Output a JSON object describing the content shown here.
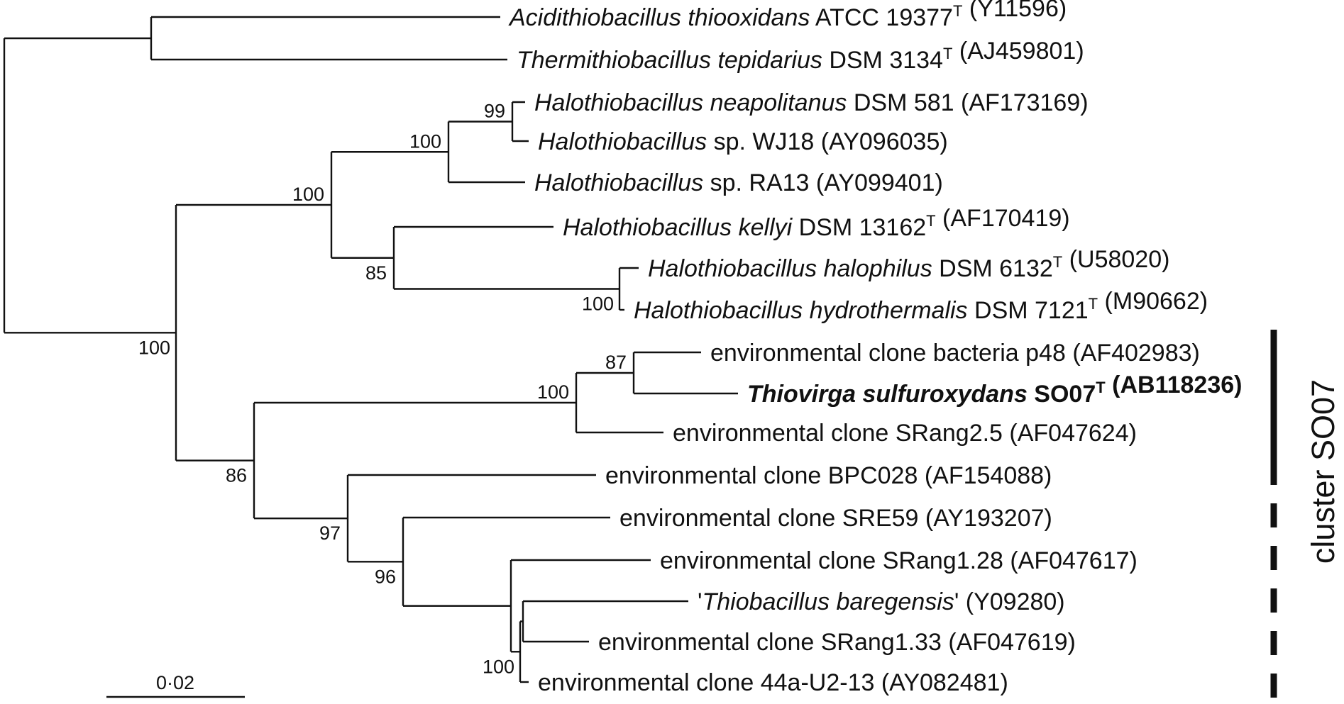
{
  "tree": {
    "taxa": [
      {
        "id": "t1",
        "parts": [
          {
            "t": "Acidithiobacillus thiooxidans",
            "i": true
          },
          {
            "t": " ATCC 19377"
          },
          {
            "t": "T",
            "sup": true
          },
          {
            "t": " (Y11596)"
          }
        ]
      },
      {
        "id": "t2",
        "parts": [
          {
            "t": "Thermithiobacillus tepidarius",
            "i": true
          },
          {
            "t": " DSM 3134"
          },
          {
            "t": "T",
            "sup": true
          },
          {
            "t": " (AJ459801)"
          }
        ]
      },
      {
        "id": "t3",
        "parts": [
          {
            "t": "Halothiobacillus neapolitanus",
            "i": true
          },
          {
            "t": " DSM 581 (AF173169)"
          }
        ]
      },
      {
        "id": "t4",
        "parts": [
          {
            "t": "Halothiobacillus",
            "i": true
          },
          {
            "t": " sp. WJ18 (AY096035)"
          }
        ]
      },
      {
        "id": "t5",
        "parts": [
          {
            "t": "Halothiobacillus",
            "i": true
          },
          {
            "t": " sp. RA13 (AY099401)"
          }
        ]
      },
      {
        "id": "t6",
        "parts": [
          {
            "t": "Halothiobacillus kellyi",
            "i": true
          },
          {
            "t": " DSM 13162"
          },
          {
            "t": "T",
            "sup": true
          },
          {
            "t": " (AF170419)"
          }
        ]
      },
      {
        "id": "t7",
        "parts": [
          {
            "t": "Halothiobacillus halophilus",
            "i": true
          },
          {
            "t": " DSM 6132"
          },
          {
            "t": "T",
            "sup": true
          },
          {
            "t": " (U58020)"
          }
        ]
      },
      {
        "id": "t8",
        "parts": [
          {
            "t": "Halothiobacillus hydrothermalis",
            "i": true
          },
          {
            "t": " DSM 7121"
          },
          {
            "t": "T",
            "sup": true
          },
          {
            "t": " (M90662)"
          }
        ]
      },
      {
        "id": "t9",
        "parts": [
          {
            "t": "environmental clone bacteria p48 (AF402983)"
          }
        ]
      },
      {
        "id": "t10",
        "parts": [
          {
            "t": "Thiovirga sulfuroxydans",
            "i": true,
            "b": true
          },
          {
            "t": " SO07",
            "b": true
          },
          {
            "t": "T",
            "sup": true,
            "b": true
          },
          {
            "t": " (AB118236)",
            "b": true
          }
        ]
      },
      {
        "id": "t11",
        "parts": [
          {
            "t": "environmental clone SRang2.5 (AF047624)"
          }
        ]
      },
      {
        "id": "t12",
        "parts": [
          {
            "t": "environmental clone BPC028 (AF154088)"
          }
        ]
      },
      {
        "id": "t13",
        "parts": [
          {
            "t": "environmental clone SRE59 (AY193207)"
          }
        ]
      },
      {
        "id": "t14",
        "parts": [
          {
            "t": "environmental clone SRang1.28 (AF047617)"
          }
        ]
      },
      {
        "id": "t15",
        "parts": [
          {
            "t": "'"
          },
          {
            "t": "Thiobacillus baregensis",
            "i": true
          },
          {
            "t": "' (Y09280)"
          }
        ]
      },
      {
        "id": "t16",
        "parts": [
          {
            "t": "environmental clone SRang1.33 (AF047619)"
          }
        ]
      },
      {
        "id": "t17",
        "parts": [
          {
            "t": "environmental clone 44a-U2-13 (AY082481)"
          }
        ]
      }
    ],
    "bootstrap": [
      {
        "node": "n_hal_neap",
        "value": "99"
      },
      {
        "node": "n_hal_sp",
        "value": "100"
      },
      {
        "node": "n_hal_all",
        "value": "100"
      },
      {
        "node": "n_hal_kel",
        "value": "85"
      },
      {
        "node": "n_hal_halo",
        "value": "100"
      },
      {
        "node": "n_ingroup",
        "value": "100"
      },
      {
        "node": "n_p48",
        "value": "87"
      },
      {
        "node": "n_so07",
        "value": "100"
      },
      {
        "node": "n_clusters",
        "value": "86"
      },
      {
        "node": "n_env",
        "value": "97"
      },
      {
        "node": "n_env2",
        "value": "96"
      },
      {
        "node": "n_baregensis",
        "value": "100"
      }
    ],
    "scale_bar": {
      "label": "0·02"
    },
    "cluster": {
      "label": "cluster SO07"
    }
  }
}
